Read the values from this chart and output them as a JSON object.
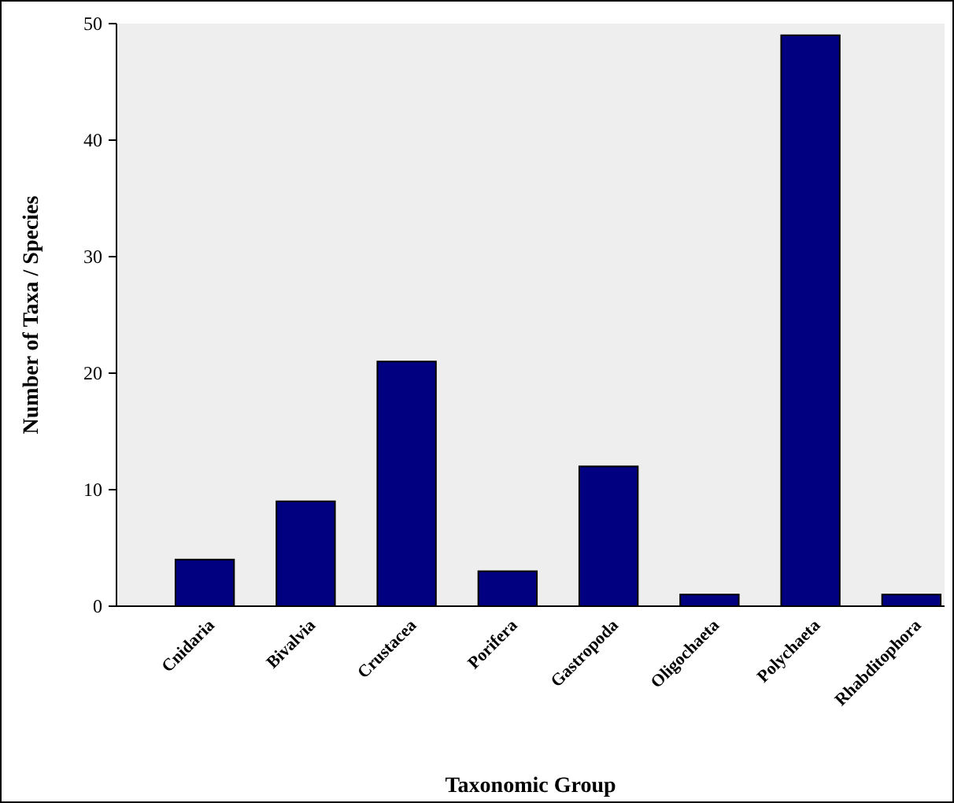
{
  "chart_data": {
    "type": "bar",
    "xlabel": "Taxonomic Group",
    "ylabel": "Number of Taxa / Species",
    "categories": [
      "Cnidaria",
      "Bivalvia",
      "Crustacea",
      "Porifera",
      "Gastropoda",
      "Oligochaeta",
      "Polychaeta",
      "Rhabditophora"
    ],
    "values": [
      4,
      9,
      21,
      3,
      12,
      1,
      49,
      1
    ],
    "color": "#000080",
    "ylim": [
      0,
      50
    ],
    "yticks": [
      0,
      10,
      20,
      30,
      40,
      50
    ],
    "grid": false
  }
}
